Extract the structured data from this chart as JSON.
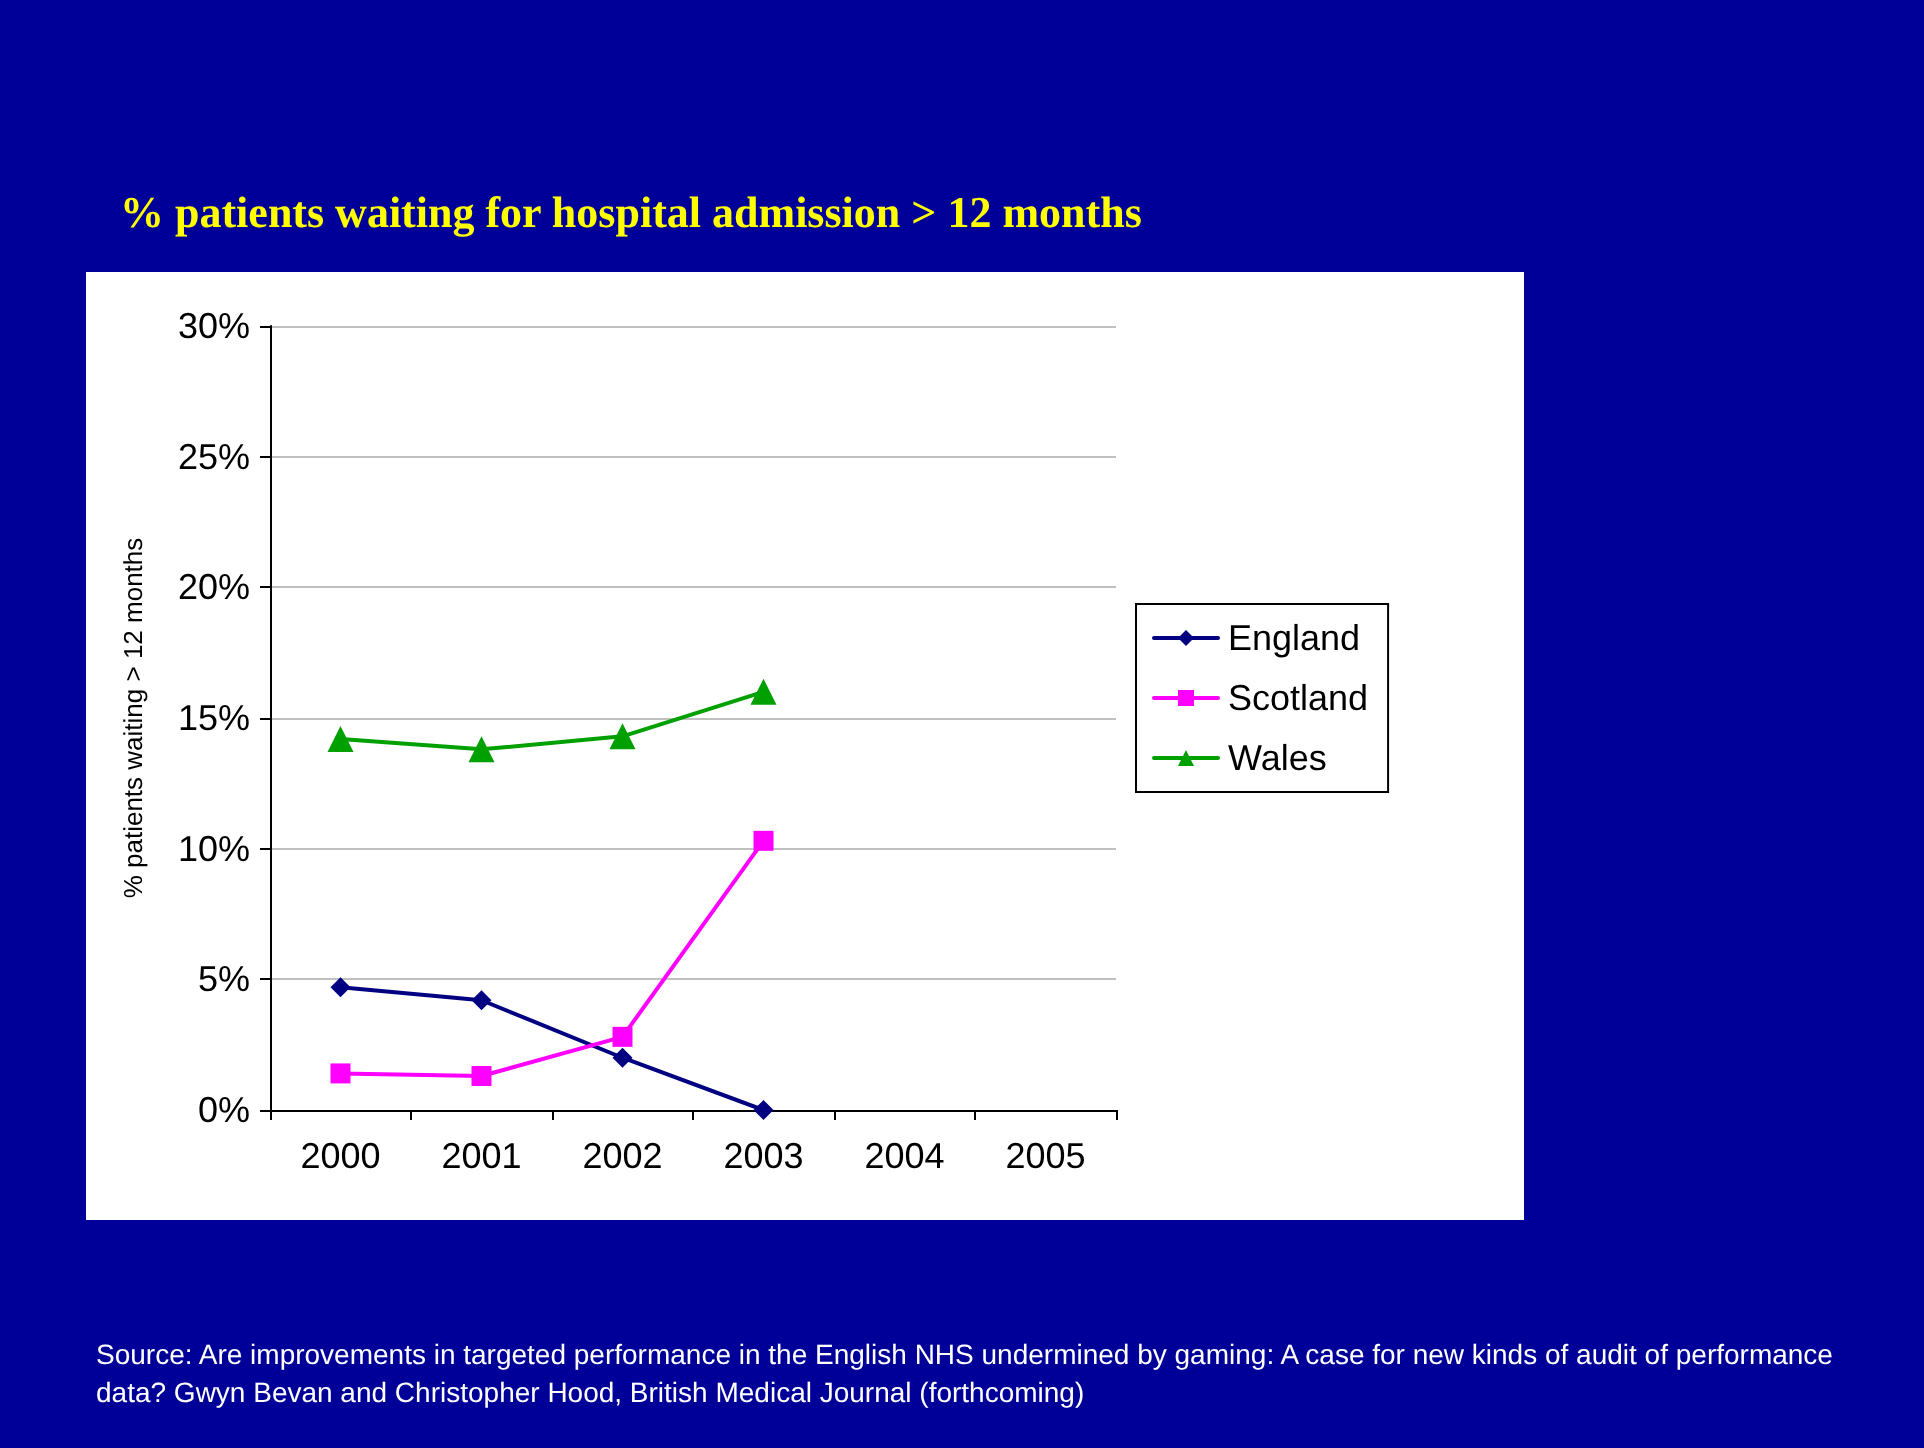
{
  "chart_data": {
    "type": "line",
    "title": "% patients waiting for hospital admission > 12 months",
    "ylabel": "% patients waiting > 12 months",
    "categories": [
      "2000",
      "2001",
      "2002",
      "2003",
      "2004",
      "2005"
    ],
    "series": [
      {
        "name": "England",
        "color": "#000080",
        "marker": "diamond",
        "values": [
          4.7,
          4.2,
          2.0,
          0,
          null,
          null
        ]
      },
      {
        "name": "Scotland",
        "color": "#ff00ff",
        "marker": "square",
        "values": [
          1.4,
          1.3,
          2.8,
          10.3,
          null,
          null
        ]
      },
      {
        "name": "Wales",
        "color": "#00a000",
        "marker": "triangle",
        "values": [
          14.2,
          13.8,
          14.3,
          16.0,
          null,
          null
        ]
      }
    ],
    "ylim": [
      0,
      30
    ],
    "yticks": [
      {
        "value": 0,
        "label": "0%"
      },
      {
        "value": 5,
        "label": "5%"
      },
      {
        "value": 10,
        "label": "10%"
      },
      {
        "value": 15,
        "label": "15%"
      },
      {
        "value": 20,
        "label": "20%"
      },
      {
        "value": 25,
        "label": "25%"
      },
      {
        "value": 30,
        "label": "30%"
      }
    ],
    "grid": "y",
    "legend": "right",
    "line_style": "solid",
    "annotations": [
      "Source: Are improvements in targeted performance in the English NHS undermined by gaming: A case for new kinds of audit of performance data? Gwyn Bevan and Christopher Hood, British Medical Journal (forthcoming)"
    ]
  }
}
